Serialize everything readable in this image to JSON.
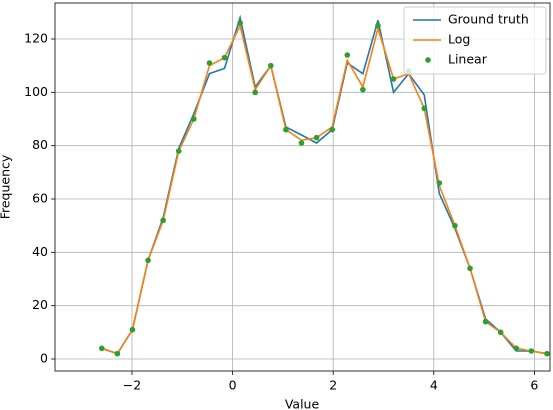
{
  "chart_data": {
    "type": "line",
    "xlabel": "Value",
    "ylabel": "Frequency",
    "x": [
      -2.6,
      -2.29,
      -1.99,
      -1.68,
      -1.38,
      -1.07,
      -0.77,
      -0.46,
      -0.16,
      0.15,
      0.45,
      0.76,
      1.06,
      1.37,
      1.67,
      1.98,
      2.28,
      2.59,
      2.89,
      3.2,
      3.5,
      3.81,
      4.11,
      4.42,
      4.72,
      5.03,
      5.33,
      5.64,
      5.94,
      6.25
    ],
    "series": [
      {
        "name": "Ground truth",
        "color": "#1f77b4",
        "style": "line",
        "values": [
          4,
          2,
          11,
          37,
          53,
          79,
          92,
          107,
          109,
          128,
          102,
          110,
          87,
          84,
          81,
          86,
          111,
          107,
          127,
          100,
          107,
          99,
          62,
          49,
          34,
          15,
          10,
          3,
          3,
          2
        ]
      },
      {
        "name": "Log",
        "color": "#ff7f0e",
        "style": "line",
        "values": [
          4,
          2,
          11,
          37,
          52,
          78,
          90,
          110,
          113,
          125,
          101,
          110,
          86,
          82,
          83,
          87,
          112,
          102,
          124,
          105,
          107,
          94,
          65,
          50,
          34,
          14,
          10,
          4,
          3,
          2
        ]
      },
      {
        "name": "Linear",
        "color": "#2ca02c",
        "style": "points",
        "values": [
          4,
          2,
          11,
          37,
          52,
          78,
          90,
          111,
          113,
          126,
          100,
          110,
          86,
          81,
          83,
          86,
          114,
          101,
          125,
          105,
          108,
          94,
          66,
          50,
          34,
          14,
          10,
          4,
          3,
          2
        ]
      }
    ],
    "xlim": [
      -3.53,
      6.31
    ],
    "xticks": [
      {
        "value": -2,
        "label": "−2"
      },
      0,
      2,
      4,
      6
    ],
    "ylim": [
      -4.5,
      133.5
    ],
    "yticks": [
      0,
      20,
      40,
      60,
      80,
      100,
      120
    ],
    "grid": true,
    "legend": "upper right"
  }
}
